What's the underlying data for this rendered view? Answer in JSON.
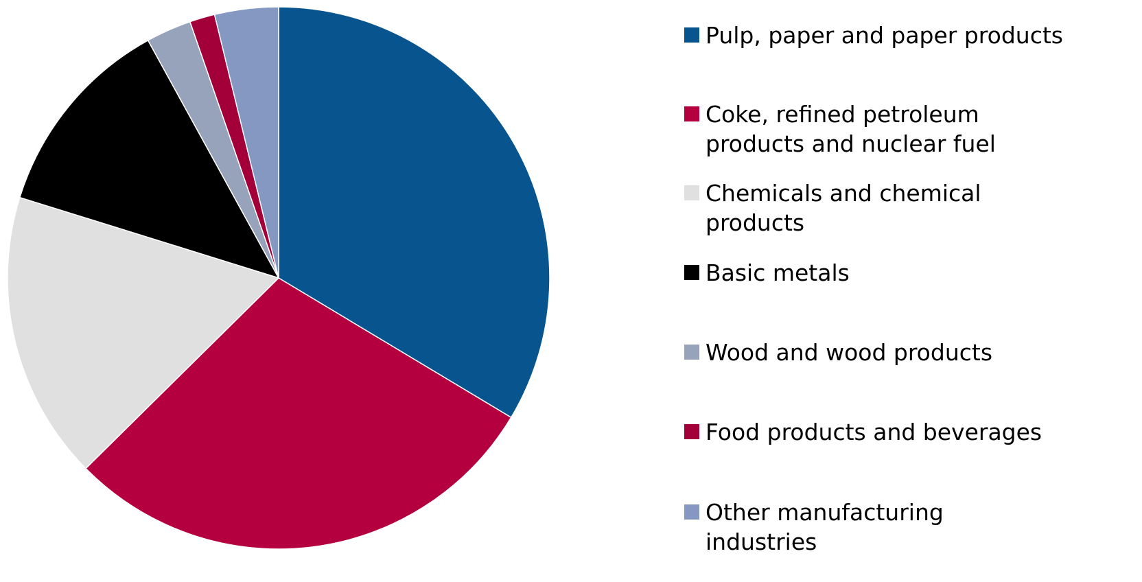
{
  "chart_data": {
    "type": "pie",
    "categories": [
      "Pulp, paper and paper products",
      "Coke, refined petroleum products and nuclear fuel",
      "Chemicals and chemical products",
      "Basic metals",
      "Wood and wood products",
      "Food products and beverages",
      "Other manufacturing industries"
    ],
    "values": [
      33.6,
      29.0,
      17.2,
      12.2,
      2.7,
      1.5,
      3.8
    ],
    "colors": [
      "#08548f",
      "#b5003f",
      "#e0e0e0",
      "#000000",
      "#97a3ba",
      "#a3003a",
      "#8498c1"
    ],
    "legend": "right"
  }
}
